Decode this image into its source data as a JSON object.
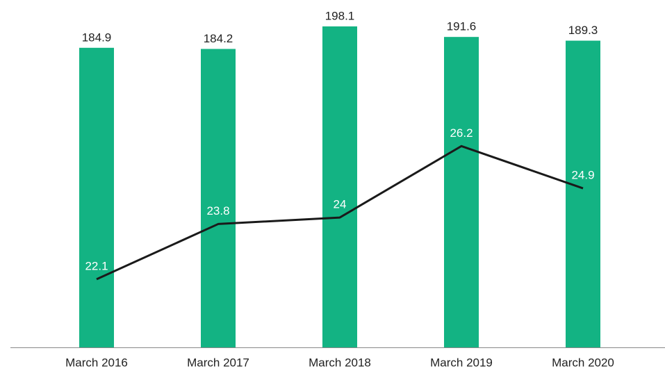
{
  "chart_data": {
    "type": "bar",
    "categories": [
      "March 2016",
      "March 2017",
      "March 2018",
      "March 2019",
      "March 2020"
    ],
    "series": [
      {
        "type": "bar",
        "color": "#13b383",
        "values": [
          184.9,
          184.2,
          198.1,
          191.6,
          189.3
        ]
      },
      {
        "type": "line",
        "axis": "y2",
        "color": "#1a1a1a",
        "values": [
          22.1,
          23.8,
          24.0,
          26.2,
          24.9
        ]
      }
    ],
    "ylim": [
      0,
      214.4
    ],
    "y2lim": [
      20,
      30.7
    ]
  }
}
